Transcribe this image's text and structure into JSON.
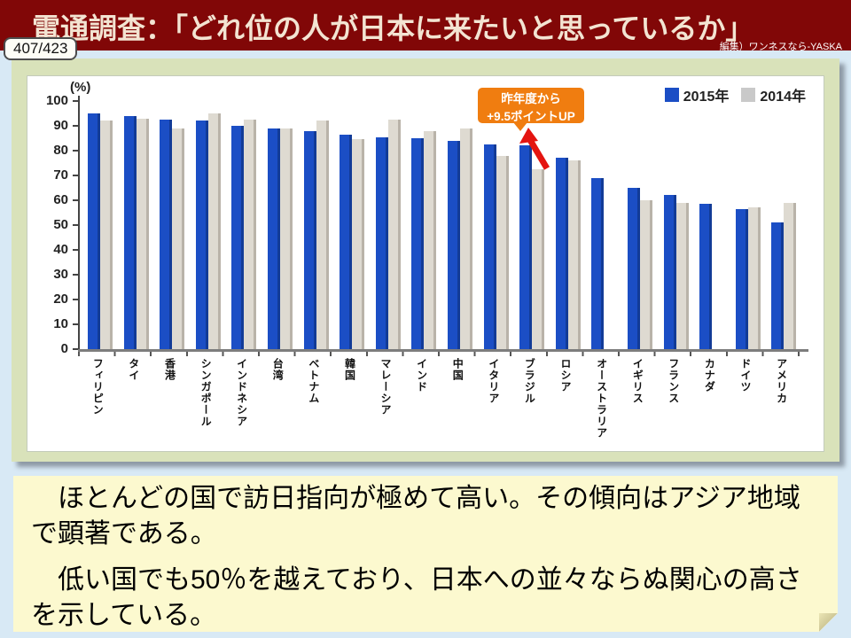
{
  "slide": {
    "title": "電通調査：「どれ位の人が日本に来たいと思っているか」",
    "page_badge": "407/423",
    "credit": "編集）ワンネスなら-YASKA"
  },
  "chart_data": {
    "type": "bar",
    "unit_label": "(%)",
    "categories": [
      "フィリピン",
      "タイ",
      "香港",
      "シンガポール",
      "インドネシア",
      "台湾",
      "ベトナム",
      "韓国",
      "マレーシア",
      "インド",
      "中国",
      "イタリア",
      "ブラジル",
      "ロシア",
      "オーストラリア",
      "イギリス",
      "フランス",
      "カナダ",
      "ドイツ",
      "アメリカ"
    ],
    "series": [
      {
        "name": "2015年",
        "color": "#1b4ec5",
        "shade": "#123b97",
        "legend_color": "#1b4ec5",
        "values": [
          95,
          94,
          92.5,
          92,
          90,
          89,
          88,
          86.5,
          85.5,
          85,
          84,
          82.5,
          82,
          77,
          69,
          65,
          62,
          58.5,
          56.5,
          51
        ]
      },
      {
        "name": "2014年",
        "color": "#dedad1",
        "shade": "#b9b3a9",
        "legend_color": "#c9c9c9",
        "values": [
          92,
          93,
          89,
          95,
          92.5,
          89,
          92,
          84.5,
          92.5,
          88,
          89,
          78,
          72.5,
          76,
          null,
          60,
          59,
          null,
          57,
          59
        ]
      }
    ],
    "ylim": [
      0,
      100
    ],
    "yticks": [
      0,
      10,
      20,
      30,
      40,
      50,
      60,
      70,
      80,
      90,
      100
    ],
    "grid": false,
    "legend_position": "top-right",
    "annotation": {
      "line1": "昨年度から",
      "line2": "+9.5ポイントUP",
      "target": "ブラジル",
      "color": "#f07d10",
      "arrow_color": "#e41410"
    }
  },
  "commentary": {
    "para1": "　ほとんどの国で訪日指向が極めて高い。その傾向はアジア地域で顕著である。",
    "para2": "　低い国でも50％を越えており、日本への並々ならぬ関心の高さを示している。"
  },
  "colors": {
    "titlebar": "#810707",
    "title_text": "#f3e4d2",
    "background": "#d8e9f5",
    "panel": "#d9e2ba",
    "note": "#fcf9cf"
  }
}
